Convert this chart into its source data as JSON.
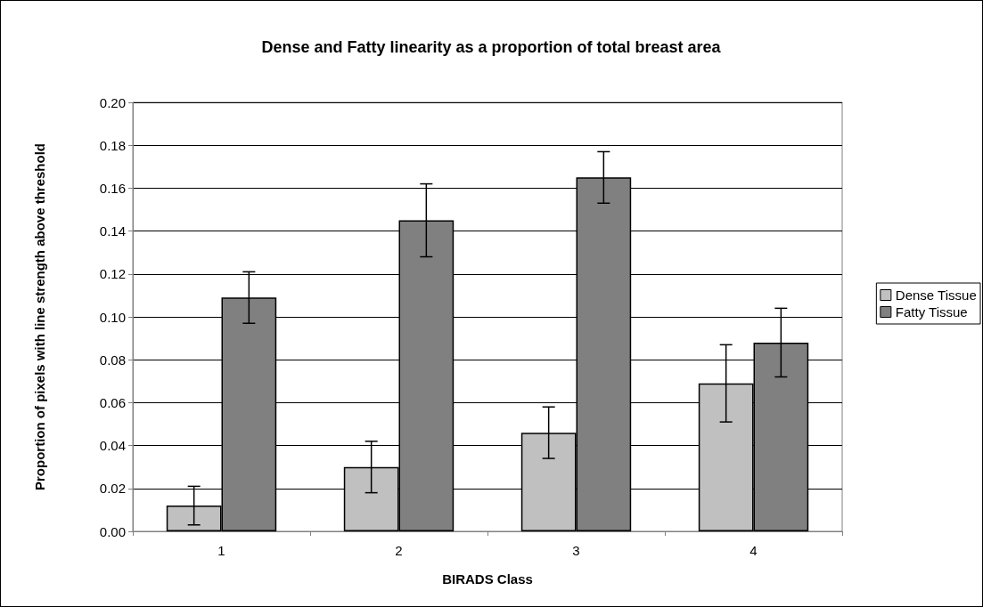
{
  "chart_data": {
    "type": "bar",
    "title": "Dense and Fatty linearity as a proportion of total breast area",
    "xlabel": "BIRADS Class",
    "ylabel": "Proportion of pixels with line strength above threshold",
    "categories": [
      "1",
      "2",
      "3",
      "4"
    ],
    "series": [
      {
        "name": "Dense Tissue",
        "color": "#c0c0c0",
        "values": [
          0.012,
          0.03,
          0.046,
          0.069
        ],
        "errors": [
          0.009,
          0.012,
          0.012,
          0.018
        ]
      },
      {
        "name": "Fatty Tissue",
        "color": "#808080",
        "values": [
          0.109,
          0.145,
          0.165,
          0.088
        ],
        "errors": [
          0.012,
          0.017,
          0.012,
          0.016
        ]
      }
    ],
    "ylim": [
      0,
      0.2
    ],
    "yticks": [
      {
        "value": 0,
        "label": "0.00"
      },
      {
        "value": 0.02,
        "label": "0.02"
      },
      {
        "value": 0.04,
        "label": "0.04"
      },
      {
        "value": 0.06,
        "label": "0.06"
      },
      {
        "value": 0.08,
        "label": "0.08"
      },
      {
        "value": 0.1,
        "label": "0.10"
      },
      {
        "value": 0.12,
        "label": "0.12"
      },
      {
        "value": 0.14,
        "label": "0.14"
      },
      {
        "value": 0.16,
        "label": "0.16"
      },
      {
        "value": 0.18,
        "label": "0.18"
      },
      {
        "value": 0.2,
        "label": "0.20"
      }
    ],
    "grid": "y",
    "legend": "right"
  }
}
